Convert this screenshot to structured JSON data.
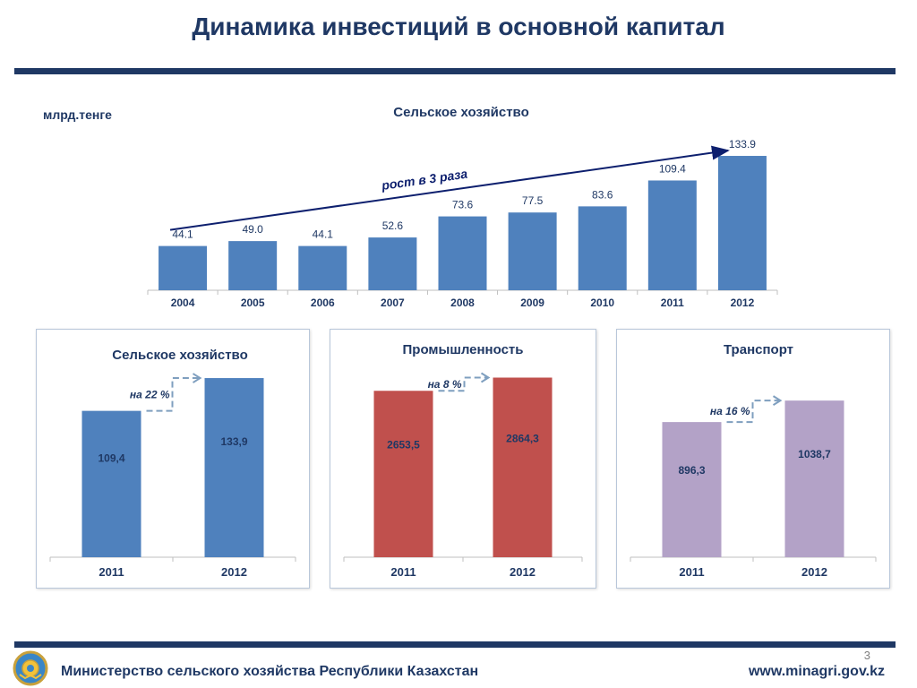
{
  "page": {
    "title": "Динамика инвестиций в основной капитал",
    "unit": "млрд.тенге",
    "page_number": "3",
    "footer": "Министерство сельского хозяйства Республики Казахстан",
    "url": "www.minagri.gov.kz",
    "emblem_icon": "kazakhstan-emblem-icon"
  },
  "chart_data": [
    {
      "type": "bar",
      "title": "Сельское хозяйство",
      "categories": [
        "2004",
        "2005",
        "2006",
        "2007",
        "2008",
        "2009",
        "2010",
        "2011",
        "2012"
      ],
      "values": [
        44.1,
        49.0,
        44.1,
        52.6,
        73.6,
        77.5,
        83.6,
        109.4,
        133.9
      ],
      "value_labels": [
        "44.1",
        "49.0",
        "44.1",
        "52.6",
        "73.6",
        "77.5",
        "83.6",
        "109.4",
        "133.9"
      ],
      "color": "#4f81bd",
      "ylim": [
        0,
        150
      ],
      "annotation": "рост в 3 раза",
      "annotation_color": "#0d1f6e"
    },
    {
      "type": "bar",
      "title": "Сельское хозяйство",
      "categories": [
        "2011",
        "2012"
      ],
      "values": [
        109.4,
        133.9
      ],
      "value_labels": [
        "109,4",
        "133,9"
      ],
      "color": "#4f81bd",
      "ylim": [
        0,
        150
      ],
      "growth_label": "на 22 %"
    },
    {
      "type": "bar",
      "title": "Промышленность",
      "categories": [
        "2011",
        "2012"
      ],
      "values": [
        2653.5,
        2864.3
      ],
      "value_labels": [
        "2653,5",
        "2864,3"
      ],
      "color": "#c0504d",
      "ylim": [
        0,
        3200
      ],
      "growth_label": "на 8 %"
    },
    {
      "type": "bar",
      "title": "Транспорт",
      "categories": [
        "2011",
        "2012"
      ],
      "values": [
        896.3,
        1038.7
      ],
      "value_labels": [
        "896,3",
        "1038,7"
      ],
      "color": "#b3a2c7",
      "ylim": [
        0,
        1200
      ],
      "growth_label": "на 16 %"
    }
  ]
}
